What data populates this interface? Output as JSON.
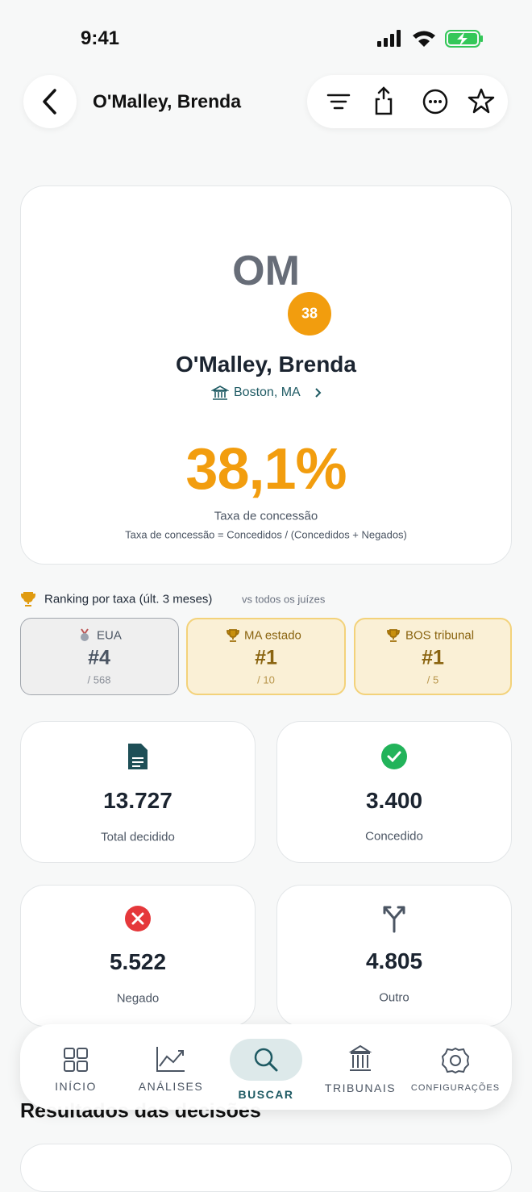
{
  "status": {
    "time": "9:41"
  },
  "header": {
    "title": "O'Malley, Brenda"
  },
  "profile": {
    "initials": "OM",
    "badge": "38",
    "name": "O'Malley, Brenda",
    "location": "Boston, MA",
    "rate": "38,1%",
    "rate_label": "Taxa de concessão",
    "formula": "Taxa de concessão = Concedidos / (Concedidos + Negados)"
  },
  "ranking": {
    "title": "Ranking por taxa (últ. 3 meses)",
    "subtitle": "vs todos os juízes",
    "cards": [
      {
        "label": "EUA",
        "rank": "#4",
        "total": "/ 568"
      },
      {
        "label": "MA estado",
        "rank": "#1",
        "total": "/ 10"
      },
      {
        "label": "BOS tribunal",
        "rank": "#1",
        "total": "/ 5"
      }
    ]
  },
  "stats": [
    {
      "value": "13.727",
      "label": "Total decidido"
    },
    {
      "value": "3.400",
      "label": "Concedido"
    },
    {
      "value": "5.522",
      "label": "Negado"
    },
    {
      "value": "4.805",
      "label": "Outro"
    }
  ],
  "section_title": "Resultados das decisões",
  "nav": {
    "items": [
      "INÍCIO",
      "ANÁLISES",
      "BUSCAR",
      "TRIBUNAIS",
      "CONFIGURAÇÕES"
    ]
  }
}
